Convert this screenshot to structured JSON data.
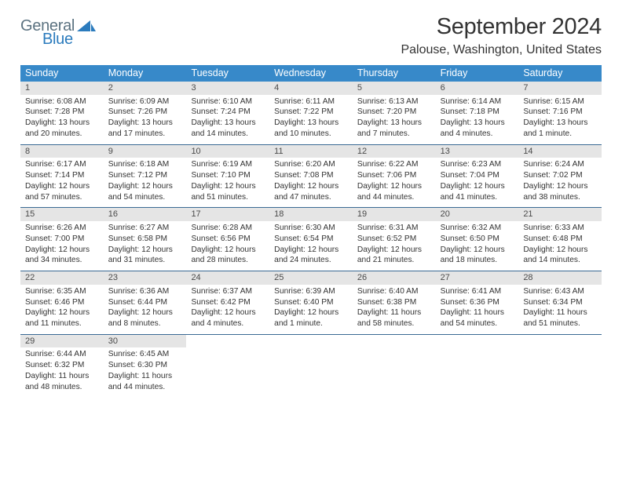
{
  "logo": {
    "text1": "General",
    "text2": "Blue",
    "text1_color": "#5b7280",
    "text2_color": "#2b7bbd",
    "shape_color": "#2b7bbd"
  },
  "title": "September 2024",
  "location": "Palouse, Washington, United States",
  "header_bg": "#3789c9",
  "header_text_color": "#ffffff",
  "daynum_bg": "#e5e5e5",
  "row_border_color": "#3a6a94",
  "weekdays": [
    "Sunday",
    "Monday",
    "Tuesday",
    "Wednesday",
    "Thursday",
    "Friday",
    "Saturday"
  ],
  "weeks": [
    [
      {
        "n": "1",
        "sr": "6:08 AM",
        "ss": "7:28 PM",
        "dl": "13 hours and 20 minutes."
      },
      {
        "n": "2",
        "sr": "6:09 AM",
        "ss": "7:26 PM",
        "dl": "13 hours and 17 minutes."
      },
      {
        "n": "3",
        "sr": "6:10 AM",
        "ss": "7:24 PM",
        "dl": "13 hours and 14 minutes."
      },
      {
        "n": "4",
        "sr": "6:11 AM",
        "ss": "7:22 PM",
        "dl": "13 hours and 10 minutes."
      },
      {
        "n": "5",
        "sr": "6:13 AM",
        "ss": "7:20 PM",
        "dl": "13 hours and 7 minutes."
      },
      {
        "n": "6",
        "sr": "6:14 AM",
        "ss": "7:18 PM",
        "dl": "13 hours and 4 minutes."
      },
      {
        "n": "7",
        "sr": "6:15 AM",
        "ss": "7:16 PM",
        "dl": "13 hours and 1 minute."
      }
    ],
    [
      {
        "n": "8",
        "sr": "6:17 AM",
        "ss": "7:14 PM",
        "dl": "12 hours and 57 minutes."
      },
      {
        "n": "9",
        "sr": "6:18 AM",
        "ss": "7:12 PM",
        "dl": "12 hours and 54 minutes."
      },
      {
        "n": "10",
        "sr": "6:19 AM",
        "ss": "7:10 PM",
        "dl": "12 hours and 51 minutes."
      },
      {
        "n": "11",
        "sr": "6:20 AM",
        "ss": "7:08 PM",
        "dl": "12 hours and 47 minutes."
      },
      {
        "n": "12",
        "sr": "6:22 AM",
        "ss": "7:06 PM",
        "dl": "12 hours and 44 minutes."
      },
      {
        "n": "13",
        "sr": "6:23 AM",
        "ss": "7:04 PM",
        "dl": "12 hours and 41 minutes."
      },
      {
        "n": "14",
        "sr": "6:24 AM",
        "ss": "7:02 PM",
        "dl": "12 hours and 38 minutes."
      }
    ],
    [
      {
        "n": "15",
        "sr": "6:26 AM",
        "ss": "7:00 PM",
        "dl": "12 hours and 34 minutes."
      },
      {
        "n": "16",
        "sr": "6:27 AM",
        "ss": "6:58 PM",
        "dl": "12 hours and 31 minutes."
      },
      {
        "n": "17",
        "sr": "6:28 AM",
        "ss": "6:56 PM",
        "dl": "12 hours and 28 minutes."
      },
      {
        "n": "18",
        "sr": "6:30 AM",
        "ss": "6:54 PM",
        "dl": "12 hours and 24 minutes."
      },
      {
        "n": "19",
        "sr": "6:31 AM",
        "ss": "6:52 PM",
        "dl": "12 hours and 21 minutes."
      },
      {
        "n": "20",
        "sr": "6:32 AM",
        "ss": "6:50 PM",
        "dl": "12 hours and 18 minutes."
      },
      {
        "n": "21",
        "sr": "6:33 AM",
        "ss": "6:48 PM",
        "dl": "12 hours and 14 minutes."
      }
    ],
    [
      {
        "n": "22",
        "sr": "6:35 AM",
        "ss": "6:46 PM",
        "dl": "12 hours and 11 minutes."
      },
      {
        "n": "23",
        "sr": "6:36 AM",
        "ss": "6:44 PM",
        "dl": "12 hours and 8 minutes."
      },
      {
        "n": "24",
        "sr": "6:37 AM",
        "ss": "6:42 PM",
        "dl": "12 hours and 4 minutes."
      },
      {
        "n": "25",
        "sr": "6:39 AM",
        "ss": "6:40 PM",
        "dl": "12 hours and 1 minute."
      },
      {
        "n": "26",
        "sr": "6:40 AM",
        "ss": "6:38 PM",
        "dl": "11 hours and 58 minutes."
      },
      {
        "n": "27",
        "sr": "6:41 AM",
        "ss": "6:36 PM",
        "dl": "11 hours and 54 minutes."
      },
      {
        "n": "28",
        "sr": "6:43 AM",
        "ss": "6:34 PM",
        "dl": "11 hours and 51 minutes."
      }
    ],
    [
      {
        "n": "29",
        "sr": "6:44 AM",
        "ss": "6:32 PM",
        "dl": "11 hours and 48 minutes."
      },
      {
        "n": "30",
        "sr": "6:45 AM",
        "ss": "6:30 PM",
        "dl": "11 hours and 44 minutes."
      },
      null,
      null,
      null,
      null,
      null
    ]
  ],
  "labels": {
    "sunrise": "Sunrise:",
    "sunset": "Sunset:",
    "daylight": "Daylight:"
  }
}
